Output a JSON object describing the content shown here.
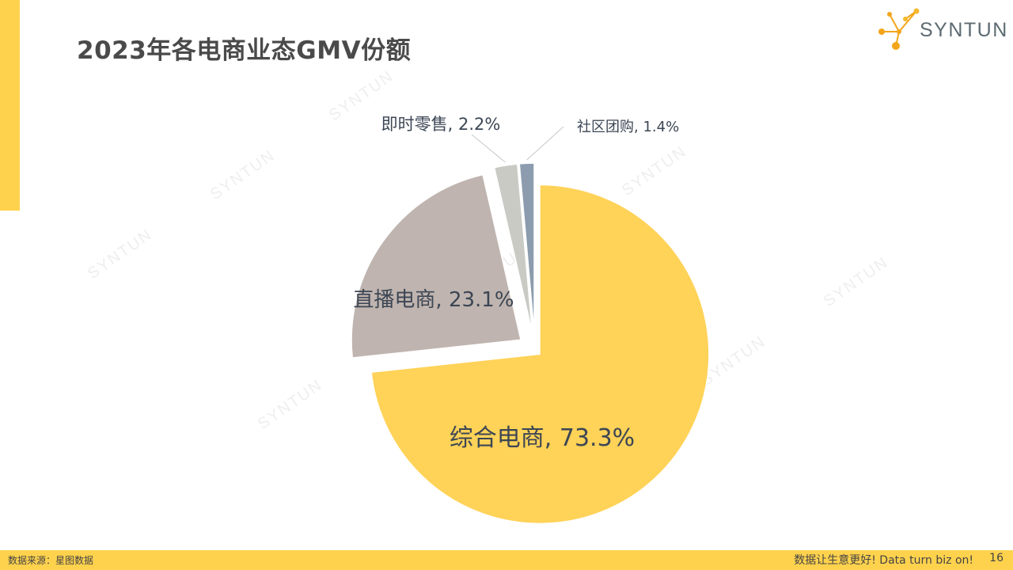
{
  "header": {
    "title": "2023年各电商业态GMV份额",
    "logo_text": "SYNTUN"
  },
  "watermark_text": "SYNTUN",
  "chart_data": {
    "type": "pie",
    "categories": [
      "综合电商",
      "直播电商",
      "即时零售",
      "社区团购"
    ],
    "values": [
      73.3,
      23.1,
      2.2,
      1.4
    ],
    "labels": [
      "综合电商, 73.3%",
      "直播电商, 23.1%",
      "即时零售, 2.2%",
      "社区团购, 1.4%"
    ],
    "colors": [
      "#FFD258",
      "#BFB4AF",
      "#C9CAC4",
      "#8C9CAE"
    ],
    "exploded": true,
    "leader_lines": [
      false,
      false,
      true,
      true
    ]
  },
  "footer": {
    "source": "数据来源：星图数据",
    "slogan": "数据让生意更好! Data turn biz on!",
    "page_number": "16"
  }
}
